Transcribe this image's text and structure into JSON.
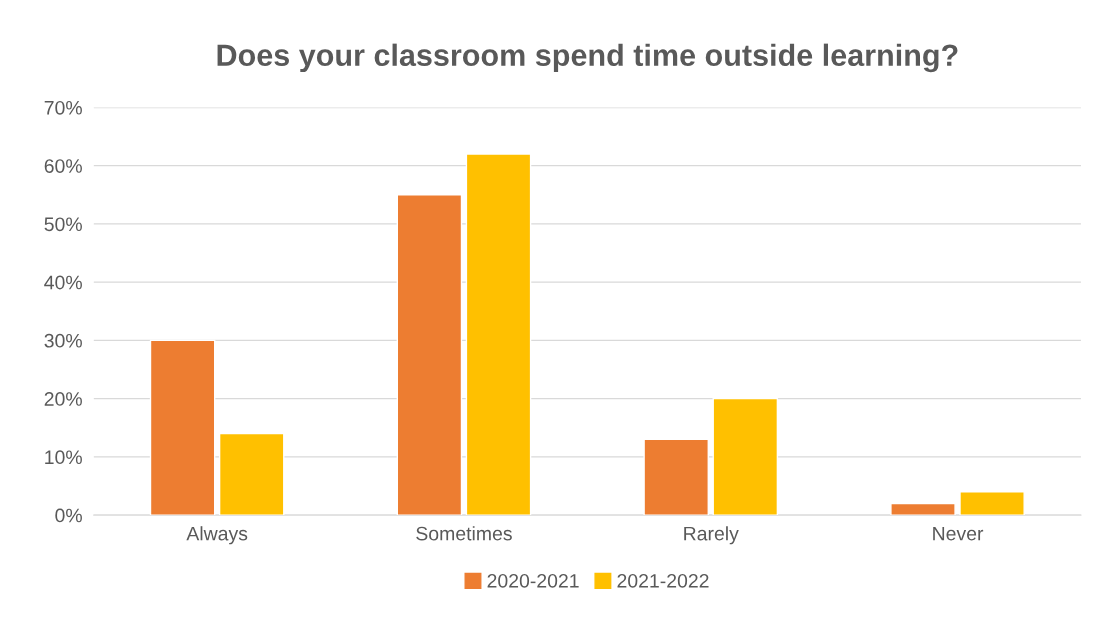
{
  "chart_data": {
    "type": "bar",
    "title": "Does your classroom spend time outside learning?",
    "categories": [
      "Always",
      "Sometimes",
      "Rarely",
      "Never"
    ],
    "series": [
      {
        "name": "2020-2021",
        "color": "#ed7d31",
        "values": [
          30,
          55,
          13,
          2
        ]
      },
      {
        "name": "2021-2022",
        "color": "#ffc000",
        "values": [
          14,
          62,
          20,
          4
        ]
      }
    ],
    "ylim": [
      0,
      70
    ],
    "yticks": [
      {
        "value": 0,
        "label": "0%"
      },
      {
        "value": 10,
        "label": "10%"
      },
      {
        "value": 20,
        "label": "20%"
      },
      {
        "value": 30,
        "label": "30%"
      },
      {
        "value": 40,
        "label": "40%"
      },
      {
        "value": 50,
        "label": "50%"
      },
      {
        "value": 60,
        "label": "60%"
      },
      {
        "value": 70,
        "label": "70%"
      }
    ],
    "grid": "y",
    "legend": "bottom"
  }
}
